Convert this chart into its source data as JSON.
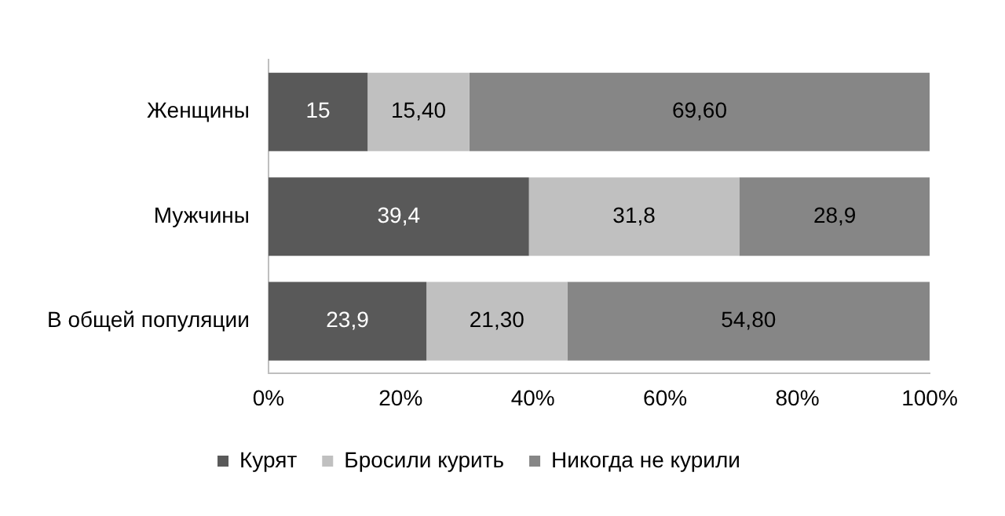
{
  "chart_data": {
    "type": "bar",
    "orientation": "horizontal",
    "stacked": true,
    "categories": [
      "Женщины",
      "Мужчины",
      "В общей популяции"
    ],
    "series": [
      {
        "name": "Курят",
        "color": "#595959",
        "values": [
          15,
          39.4,
          23.9
        ],
        "value_labels": [
          "15",
          "39,4",
          "23,9"
        ]
      },
      {
        "name": "Бросили курить",
        "color": "#c0c0c0",
        "values": [
          15.4,
          31.8,
          21.3
        ],
        "value_labels": [
          "15,40",
          "31,8",
          "21,30"
        ]
      },
      {
        "name": "Никогда не курили",
        "color": "#868686",
        "values": [
          69.6,
          28.9,
          54.8
        ],
        "value_labels": [
          "69,60",
          "28,9",
          "54,80"
        ]
      }
    ],
    "xlim": [
      0,
      100
    ],
    "xticks": [
      {
        "value": 0,
        "label": "0%"
      },
      {
        "value": 20,
        "label": "20%"
      },
      {
        "value": 40,
        "label": "40%"
      },
      {
        "value": 60,
        "label": "60%"
      },
      {
        "value": 80,
        "label": "80%"
      },
      {
        "value": 100,
        "label": "100%"
      }
    ],
    "grid": false,
    "legend": "bottom"
  }
}
